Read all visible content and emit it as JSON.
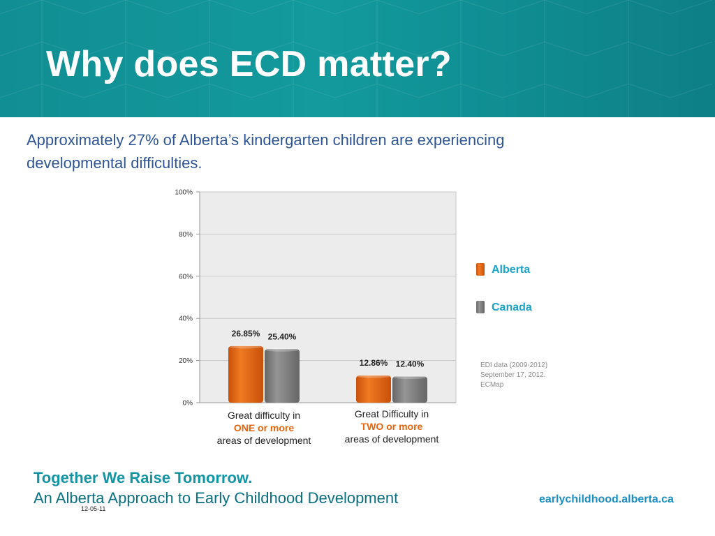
{
  "slide": {
    "title": "Why does ECD matter?",
    "subtitle": "Approximately 27% of Alberta’s kindergarten children are experiencing developmental difficulties.",
    "footer": {
      "tagline": "Together We Raise Tomorrow.",
      "approach": "An Alberta Approach to Early Childhood Development",
      "url": "earlychildhood.alberta.ca",
      "date": "12-05-11"
    },
    "colors": {
      "header": "#118e93",
      "subtitle": "#2f5597",
      "tagline": "#1395a4",
      "url": "#1a8fc6"
    }
  },
  "chart_data": {
    "type": "bar",
    "categories": [
      [
        "Great difficulty in",
        "ONE or more",
        "areas of development"
      ],
      [
        "Great Difficulty in",
        "TWO or more",
        "areas of development"
      ]
    ],
    "series": [
      {
        "name": "Alberta",
        "values": [
          26.85,
          12.86
        ],
        "labels": [
          "26.85%",
          "12.86%"
        ],
        "color": "#e8640c"
      },
      {
        "name": "Canada",
        "values": [
          25.4,
          12.4
        ],
        "labels": [
          "25.40%",
          "12.40%"
        ],
        "color": "#7d7d7d"
      }
    ],
    "yticks": [
      "0%",
      "20%",
      "40%",
      "60%",
      "80%",
      "100%"
    ],
    "ylim": [
      0,
      100
    ],
    "grid": true,
    "legend": "right",
    "highlight_color": "#e8640c",
    "legend_text_color": "#1aa3c8",
    "source_note": [
      "EDI data (2009-2012)",
      "September  17, 2012.",
      "ECMap"
    ]
  }
}
